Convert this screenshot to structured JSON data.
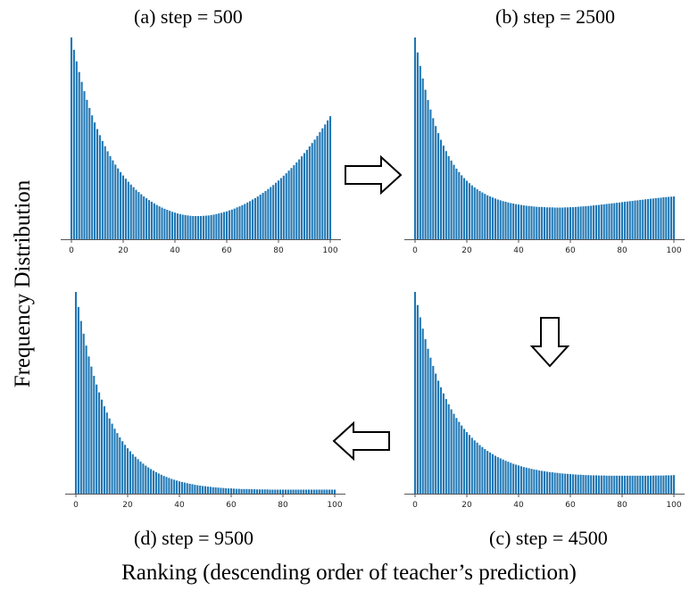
{
  "figure": {
    "xlabel": "Ranking (descending order of teacher’s prediction)",
    "ylabel": "Frequency Distribution"
  },
  "chart_data": [
    {
      "type": "bar",
      "title": "(a) step = 500",
      "x_range": [
        0,
        100
      ],
      "x_ticks": [
        "0",
        "20",
        "40",
        "60",
        "80",
        "100"
      ],
      "ylim": [
        0,
        1
      ],
      "color": "#1f77b4",
      "values": [
        1.0,
        0.939,
        0.882,
        0.829,
        0.78,
        0.734,
        0.691,
        0.651,
        0.614,
        0.579,
        0.546,
        0.516,
        0.487,
        0.461,
        0.436,
        0.412,
        0.391,
        0.37,
        0.351,
        0.333,
        0.316,
        0.3,
        0.285,
        0.271,
        0.258,
        0.245,
        0.234,
        0.223,
        0.212,
        0.203,
        0.194,
        0.186,
        0.178,
        0.17,
        0.163,
        0.157,
        0.151,
        0.146,
        0.141,
        0.136,
        0.132,
        0.128,
        0.125,
        0.122,
        0.12,
        0.118,
        0.116,
        0.115,
        0.115,
        0.115,
        0.115,
        0.116,
        0.117,
        0.118,
        0.12,
        0.122,
        0.125,
        0.128,
        0.131,
        0.135,
        0.138,
        0.143,
        0.147,
        0.152,
        0.158,
        0.163,
        0.169,
        0.175,
        0.182,
        0.189,
        0.197,
        0.204,
        0.212,
        0.221,
        0.23,
        0.239,
        0.249,
        0.259,
        0.269,
        0.28,
        0.291,
        0.303,
        0.315,
        0.327,
        0.34,
        0.353,
        0.367,
        0.381,
        0.396,
        0.411,
        0.427,
        0.443,
        0.46,
        0.477,
        0.494,
        0.512,
        0.531,
        0.55,
        0.569,
        0.589,
        0.61
      ]
    },
    {
      "type": "bar",
      "title": "(b) step = 2500",
      "x_range": [
        0,
        100
      ],
      "x_ticks": [
        "0",
        "20",
        "40",
        "60",
        "80",
        "100"
      ],
      "ylim": [
        0,
        1
      ],
      "color": "#1f77b4",
      "values": [
        1.0,
        0.926,
        0.859,
        0.797,
        0.741,
        0.69,
        0.643,
        0.6,
        0.561,
        0.526,
        0.493,
        0.464,
        0.437,
        0.412,
        0.39,
        0.369,
        0.35,
        0.333,
        0.317,
        0.303,
        0.29,
        0.278,
        0.267,
        0.257,
        0.248,
        0.239,
        0.232,
        0.225,
        0.218,
        0.212,
        0.207,
        0.202,
        0.197,
        0.193,
        0.189,
        0.186,
        0.182,
        0.179,
        0.177,
        0.174,
        0.172,
        0.17,
        0.168,
        0.166,
        0.165,
        0.164,
        0.162,
        0.161,
        0.16,
        0.16,
        0.159,
        0.158,
        0.158,
        0.158,
        0.157,
        0.157,
        0.157,
        0.157,
        0.158,
        0.158,
        0.159,
        0.159,
        0.16,
        0.161,
        0.162,
        0.163,
        0.164,
        0.165,
        0.166,
        0.168,
        0.169,
        0.17,
        0.172,
        0.173,
        0.175,
        0.176,
        0.178,
        0.179,
        0.181,
        0.182,
        0.184,
        0.186,
        0.187,
        0.189,
        0.19,
        0.192,
        0.193,
        0.195,
        0.196,
        0.198,
        0.199,
        0.201,
        0.202,
        0.204,
        0.205,
        0.206,
        0.208,
        0.209,
        0.21,
        0.211,
        0.212
      ]
    },
    {
      "type": "bar",
      "title": "(c) step = 4500",
      "x_range": [
        0,
        100
      ],
      "x_ticks": [
        "0",
        "20",
        "40",
        "60",
        "80",
        "100"
      ],
      "ylim": [
        0,
        1
      ],
      "color": "#1f77b4",
      "values": [
        1.0,
        0.935,
        0.874,
        0.818,
        0.766,
        0.718,
        0.674,
        0.633,
        0.595,
        0.56,
        0.527,
        0.497,
        0.469,
        0.443,
        0.418,
        0.396,
        0.375,
        0.356,
        0.338,
        0.321,
        0.305,
        0.291,
        0.277,
        0.264,
        0.253,
        0.241,
        0.231,
        0.221,
        0.212,
        0.204,
        0.196,
        0.188,
        0.181,
        0.175,
        0.169,
        0.163,
        0.158,
        0.153,
        0.148,
        0.144,
        0.14,
        0.136,
        0.132,
        0.129,
        0.126,
        0.123,
        0.12,
        0.118,
        0.115,
        0.113,
        0.111,
        0.109,
        0.107,
        0.106,
        0.104,
        0.103,
        0.101,
        0.1,
        0.099,
        0.098,
        0.097,
        0.096,
        0.095,
        0.094,
        0.094,
        0.093,
        0.092,
        0.092,
        0.091,
        0.091,
        0.091,
        0.09,
        0.09,
        0.09,
        0.089,
        0.089,
        0.089,
        0.089,
        0.089,
        0.089,
        0.089,
        0.089,
        0.089,
        0.089,
        0.089,
        0.089,
        0.089,
        0.089,
        0.089,
        0.089,
        0.089,
        0.089,
        0.09,
        0.09,
        0.09,
        0.09,
        0.09,
        0.091,
        0.091,
        0.091,
        0.092
      ]
    },
    {
      "type": "bar",
      "title": "(d) step = 9500",
      "x_range": [
        0,
        100
      ],
      "x_ticks": [
        "0",
        "20",
        "40",
        "60",
        "80",
        "100"
      ],
      "ylim": [
        0,
        1
      ],
      "color": "#1f77b4",
      "values": [
        1.0,
        0.925,
        0.856,
        0.793,
        0.734,
        0.68,
        0.63,
        0.584,
        0.541,
        0.502,
        0.466,
        0.433,
        0.402,
        0.373,
        0.347,
        0.322,
        0.3,
        0.279,
        0.26,
        0.242,
        0.225,
        0.21,
        0.196,
        0.183,
        0.171,
        0.159,
        0.149,
        0.139,
        0.13,
        0.122,
        0.114,
        0.107,
        0.1,
        0.094,
        0.088,
        0.083,
        0.078,
        0.073,
        0.069,
        0.065,
        0.061,
        0.058,
        0.055,
        0.052,
        0.049,
        0.047,
        0.044,
        0.042,
        0.04,
        0.038,
        0.037,
        0.035,
        0.034,
        0.032,
        0.031,
        0.03,
        0.029,
        0.028,
        0.027,
        0.026,
        0.026,
        0.025,
        0.024,
        0.024,
        0.023,
        0.023,
        0.023,
        0.022,
        0.022,
        0.022,
        0.021,
        0.021,
        0.021,
        0.021,
        0.021,
        0.02,
        0.02,
        0.02,
        0.02,
        0.02,
        0.02,
        0.02,
        0.02,
        0.02,
        0.02,
        0.02,
        0.02,
        0.02,
        0.02,
        0.02,
        0.02,
        0.02,
        0.02,
        0.02,
        0.02,
        0.02,
        0.02,
        0.02,
        0.02,
        0.02,
        0.02
      ]
    }
  ]
}
